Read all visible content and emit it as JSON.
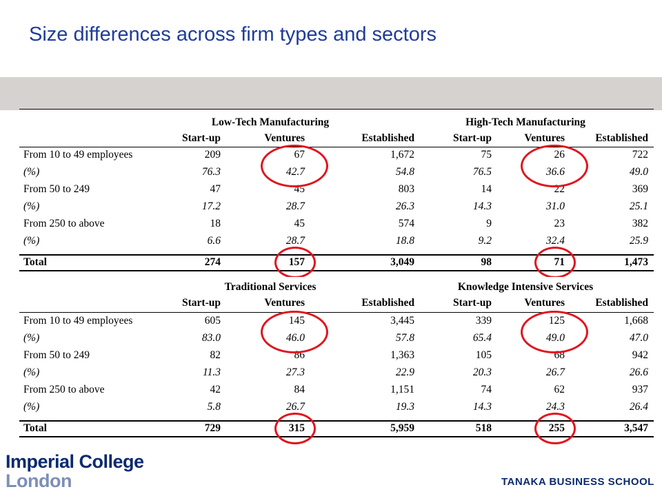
{
  "title": "Size differences across firm types and sectors",
  "columns": [
    "Start-up",
    "Ventures",
    "Established",
    "Start-up",
    "Ventures",
    "Established"
  ],
  "tables": [
    {
      "groups": [
        "Low-Tech Manufacturing",
        "High-Tech Manufacturing"
      ],
      "rows": [
        {
          "label": "From 10 to 49 employees",
          "values": [
            "209",
            "67",
            "1,672",
            "75",
            "26",
            "722"
          ]
        },
        {
          "label": "(%)",
          "values": [
            "76.3",
            "42.7",
            "54.8",
            "76.5",
            "36.6",
            "49.0"
          ]
        },
        {
          "label": "From 50 to 249",
          "values": [
            "47",
            "45",
            "803",
            "14",
            "22",
            "369"
          ]
        },
        {
          "label": "(%)",
          "values": [
            "17.2",
            "28.7",
            "26.3",
            "14.3",
            "31.0",
            "25.1"
          ]
        },
        {
          "label": "From 250 to above",
          "values": [
            "18",
            "45",
            "574",
            "9",
            "23",
            "382"
          ]
        },
        {
          "label": "(%)",
          "values": [
            "6.6",
            "28.7",
            "18.8",
            "9.2",
            "32.4",
            "25.9"
          ]
        },
        {
          "label": "Total",
          "values": [
            "274",
            "157",
            "3,049",
            "98",
            "71",
            "1,473"
          ]
        }
      ]
    },
    {
      "groups": [
        "Traditional Services",
        "Knowledge Intensive Services"
      ],
      "rows": [
        {
          "label": "From 10 to 49 employees",
          "values": [
            "605",
            "145",
            "3,445",
            "339",
            "125",
            "1,668"
          ]
        },
        {
          "label": "(%)",
          "values": [
            "83.0",
            "46.0",
            "57.8",
            "65.4",
            "49.0",
            "47.0"
          ]
        },
        {
          "label": "From 50 to 249",
          "values": [
            "82",
            "86",
            "1,363",
            "105",
            "68",
            "942"
          ]
        },
        {
          "label": "(%)",
          "values": [
            "11.3",
            "27.3",
            "22.9",
            "20.3",
            "26.7",
            "26.6"
          ]
        },
        {
          "label": "From 250 to above",
          "values": [
            "42",
            "84",
            "1,151",
            "74",
            "62",
            "937"
          ]
        },
        {
          "label": "(%)",
          "values": [
            "5.8",
            "26.7",
            "19.3",
            "14.3",
            "24.3",
            "26.4"
          ]
        },
        {
          "label": "Total",
          "values": [
            "729",
            "315",
            "5,959",
            "518",
            "255",
            "3,547"
          ]
        }
      ]
    }
  ],
  "highlight_color": "#e0141e",
  "branding": {
    "college_line1": "Imperial College",
    "college_line2": "London",
    "school": "TANAKA BUSINESS SCHOOL"
  }
}
